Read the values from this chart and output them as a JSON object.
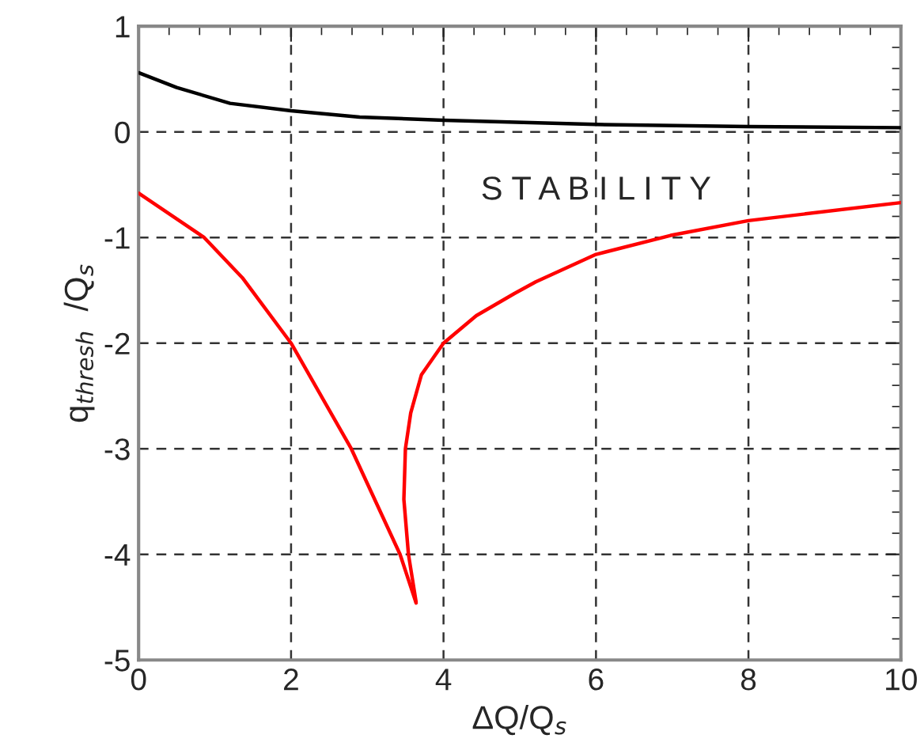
{
  "chart_data": {
    "type": "line",
    "xlabel": "ΔQ/Q$_{s}$",
    "ylabel": "q$_{thresh}$  /Q$_{s}$",
    "annotations": [
      "S T A B I L I T Y"
    ],
    "series": [
      {
        "color": "#000000",
        "x": [
          0,
          0.5,
          1.2,
          2,
          2.9,
          4,
          6,
          8,
          10
        ],
        "values": [
          0.56,
          0.42,
          0.27,
          0.2,
          0.14,
          0.11,
          0.07,
          0.05,
          0.04
        ]
      },
      {
        "color": "#ff0000",
        "x": [
          0,
          0.86,
          1.36,
          2,
          2.79,
          3.43,
          3.64
        ],
        "values": [
          -0.58,
          -1.0,
          -1.38,
          -2.0,
          -3.0,
          -4.0,
          -4.46
        ]
      },
      {
        "color": "#ff0000",
        "x": [
          3.64,
          3.54,
          3.48,
          3.5,
          3.57,
          3.71,
          4.0,
          4.43,
          4.93,
          5.21,
          6,
          6.98,
          8,
          10
        ],
        "values": [
          -4.45,
          -4.0,
          -3.48,
          -3.0,
          -2.66,
          -2.3,
          -2.0,
          -1.74,
          -1.53,
          -1.42,
          -1.16,
          -0.98,
          -0.84,
          -0.67
        ]
      }
    ],
    "xlim": [
      0,
      10
    ],
    "xticks": [
      0,
      2,
      4,
      6,
      8,
      10
    ],
    "ylim": [
      -5,
      1
    ],
    "yticks": [
      -5,
      -4,
      -3,
      -2,
      -1,
      0,
      1
    ],
    "grid": true,
    "line_style": "solid",
    "marker": "none"
  }
}
